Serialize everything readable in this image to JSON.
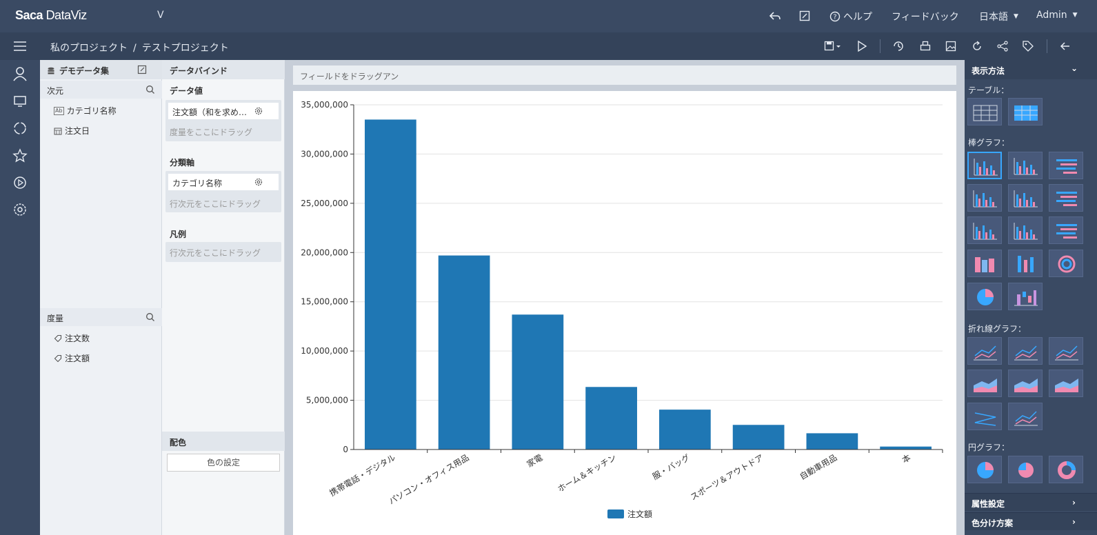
{
  "app": {
    "logo": "Saca",
    "logo_sub": "DataViz",
    "version_marker": "V"
  },
  "topnav": {
    "help": "ヘルプ",
    "feedback": "フィードバック",
    "language": "日本語",
    "user": "Admin"
  },
  "breadcrumb": {
    "root": "私のプロジェクト",
    "separator": "/",
    "current": "テストプロジェクト"
  },
  "fields": {
    "dataset": "デモデータ集",
    "dimensions_header": "次元",
    "dimensions": [
      {
        "type_icon": "text-type-icon",
        "label": "カテゴリ名称"
      },
      {
        "type_icon": "date-type-icon",
        "label": "注文日"
      }
    ],
    "measures_header": "度量",
    "measures": [
      {
        "label": "注文数"
      },
      {
        "label": "注文額"
      }
    ]
  },
  "bind": {
    "header": "データバインド",
    "values_label": "データ値",
    "values_chip": "注文額（和を求め…",
    "values_hint": "度量をここにドラッグ",
    "axis_label": "分類軸",
    "axis_chip": "カテゴリ名称",
    "axis_hint": "行次元をここにドラッグ",
    "legend_label": "凡例",
    "legend_hint": "行次元をここにドラッグ",
    "color_label": "配色",
    "color_button": "色の設定"
  },
  "center": {
    "drop_hint": "フィールドをドラッグアン"
  },
  "chart_data": {
    "type": "bar",
    "categories": [
      "携帯電話・デジタル",
      "パソコン・オフィス用品",
      "家電",
      "ホーム＆キッチン",
      "服・バッグ",
      "スポーツ＆アウトドア",
      "自動車用品",
      "本"
    ],
    "series": [
      {
        "name": "注文額",
        "color": "#1f77b4",
        "values": [
          33500000,
          19700000,
          13700000,
          6350000,
          4050000,
          2500000,
          1650000,
          300000
        ]
      }
    ],
    "ylim": [
      0,
      35000000
    ],
    "yticks": [
      "0",
      "5,000,000",
      "10,000,000",
      "15,000,000",
      "20,000,000",
      "25,000,000",
      "30,000,000",
      "35,000,000"
    ],
    "grid": true,
    "legend": "bottom-center"
  },
  "right_panel": {
    "header": "表示方法",
    "cat_table": "テーブル：",
    "cat_bar": "棒グラフ：",
    "cat_line": "折れ線グラフ：",
    "cat_pie": "円グラフ：",
    "footer1": "属性設定",
    "footer2": "色分け方案"
  },
  "colors": {
    "topbar": "#3a4a63",
    "accent": "#38a7ff",
    "bar": "#1f77b4"
  }
}
